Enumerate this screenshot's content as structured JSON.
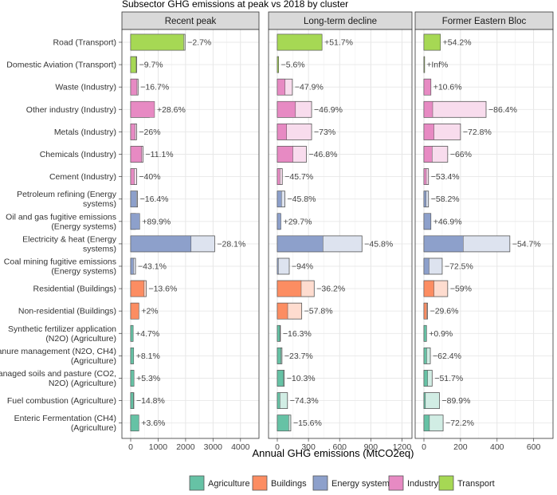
{
  "chart_data": {
    "type": "bar",
    "title": "Subsector GHG emissions at peak vs 2018 by cluster",
    "xlabel": "Annual GHG emissions (MtCO2eq)",
    "orientation": "horizontal",
    "facets": [
      "Recent peak",
      "Long-term decline",
      "Former Eastern Bloc"
    ],
    "categories": [
      {
        "label": [
          "Road (Transport)"
        ],
        "group": "Transport"
      },
      {
        "label": [
          "Domestic Aviation (Transport)"
        ],
        "group": "Transport"
      },
      {
        "label": [
          "Waste (Industry)"
        ],
        "group": "Industry"
      },
      {
        "label": [
          "Other industry (Industry)"
        ],
        "group": "Industry"
      },
      {
        "label": [
          "Metals (Industry)"
        ],
        "group": "Industry"
      },
      {
        "label": [
          "Chemicals (Industry)"
        ],
        "group": "Industry"
      },
      {
        "label": [
          "Cement (Industry)"
        ],
        "group": "Industry"
      },
      {
        "label": [
          "Petroleum refining (Energy",
          "systems)"
        ],
        "group": "Energy systems"
      },
      {
        "label": [
          "Oil and gas fugitive emissions",
          "(Energy systems)"
        ],
        "group": "Energy systems"
      },
      {
        "label": [
          "Electricity & heat (Energy",
          "systems)"
        ],
        "group": "Energy systems"
      },
      {
        "label": [
          "Coal mining fugitive emissions",
          "(Energy systems)"
        ],
        "group": "Energy systems"
      },
      {
        "label": [
          "Residential (Buildings)"
        ],
        "group": "Buildings"
      },
      {
        "label": [
          "Non-residential (Buildings)"
        ],
        "group": "Buildings"
      },
      {
        "label": [
          "Synthetic fertilizer application",
          "(N2O) (Agriculture)"
        ],
        "group": "Agriculture"
      },
      {
        "label": [
          "Manure management (N2O, CH4)",
          "(Agriculture)"
        ],
        "group": "Agriculture"
      },
      {
        "label": [
          "Managed soils and pasture (CO2,",
          "N2O) (Agriculture)"
        ],
        "group": "Agriculture"
      },
      {
        "label": [
          "Fuel combustion (Agriculture)"
        ],
        "group": "Agriculture"
      },
      {
        "label": [
          "Enteric Fermentation (CH4)",
          "(Agriculture)"
        ],
        "group": "Agriculture"
      }
    ],
    "panels": [
      {
        "name": "Recent peak",
        "xlim": [
          0,
          4500
        ],
        "xticks": [
          0,
          1000,
          2000,
          3000,
          4000
        ],
        "values_2018": [
          1930,
          200,
          230,
          870,
          160,
          400,
          130,
          210,
          330,
          2200,
          100,
          490,
          300,
          90,
          110,
          120,
          100,
          300
        ],
        "values_peak": [
          1980,
          220,
          270,
          680,
          215,
          450,
          215,
          250,
          175,
          3060,
          175,
          565,
          295,
          85,
          105,
          115,
          115,
          290
        ],
        "labels": [
          "−2.7%",
          "−9.7%",
          "−16.7%",
          "+28.6%",
          "−26%",
          "−11.1%",
          "−40%",
          "−16.4%",
          "+89.9%",
          "−28.1%",
          "−43.1%",
          "−13.6%",
          "+2%",
          "+4.7%",
          "+8.1%",
          "+5.3%",
          "−14.8%",
          "+3.6%"
        ]
      },
      {
        "name": "Long-term decline",
        "xlim": [
          0,
          1250
        ],
        "xticks": [
          0,
          300,
          600,
          900,
          1200
        ],
        "values_2018": [
          430,
          12,
          75,
          175,
          90,
          150,
          25,
          40,
          35,
          440,
          10,
          230,
          100,
          25,
          35,
          60,
          25,
          110
        ],
        "values_peak": [
          430,
          12,
          145,
          330,
          330,
          280,
          48,
          73,
          27,
          815,
          115,
          355,
          235,
          30,
          45,
          67,
          98,
          130
        ],
        "labels": [
          "+51.7%",
          "−5.6%",
          "−47.9%",
          "−46.9%",
          "−73%",
          "−46.8%",
          "−45.7%",
          "−45.8%",
          "+29.7%",
          "−45.8%",
          "−94%",
          "−36.2%",
          "−57.8%",
          "−16.3%",
          "−23.7%",
          "−10.3%",
          "−74.3%",
          "−15.6%"
        ]
      },
      {
        "name": "Former Eastern Bloc",
        "xlim": [
          0,
          680
        ],
        "xticks": [
          0,
          200,
          400,
          600
        ],
        "values_2018": [
          90,
          1,
          38,
          48,
          55,
          45,
          13,
          12,
          38,
          215,
          28,
          55,
          15,
          14,
          15,
          20,
          8,
          30
        ],
        "values_peak": [
          90,
          1,
          38,
          340,
          200,
          130,
          25,
          25,
          38,
          470,
          100,
          130,
          20,
          14,
          35,
          45,
          85,
          105
        ],
        "labels": [
          "+54.2%",
          "+Inf%",
          "+10.6%",
          "−86.4%",
          "−72.8%",
          "−66%",
          "−53.4%",
          "−58.2%",
          "+46.9%",
          "−54.7%",
          "−72.5%",
          "−59%",
          "−29.6%",
          "+0.9%",
          "−62.4%",
          "−51.7%",
          "−89.9%",
          "−72.2%"
        ]
      }
    ],
    "legend": {
      "placement": "bottom",
      "entries": [
        {
          "name": "Agriculture",
          "color": "#66c2a5",
          "light": "#d1ede4"
        },
        {
          "name": "Buildings",
          "color": "#fc8d62",
          "light": "#fedccf"
        },
        {
          "name": "Energy systems",
          "color": "#8da0cb",
          "light": "#dde3ef"
        },
        {
          "name": "Industry",
          "color": "#e78ac3",
          "light": "#f8dced"
        },
        {
          "name": "Transport",
          "color": "#a6d854",
          "light": "#e4f3cb"
        }
      ]
    },
    "grid": true
  }
}
